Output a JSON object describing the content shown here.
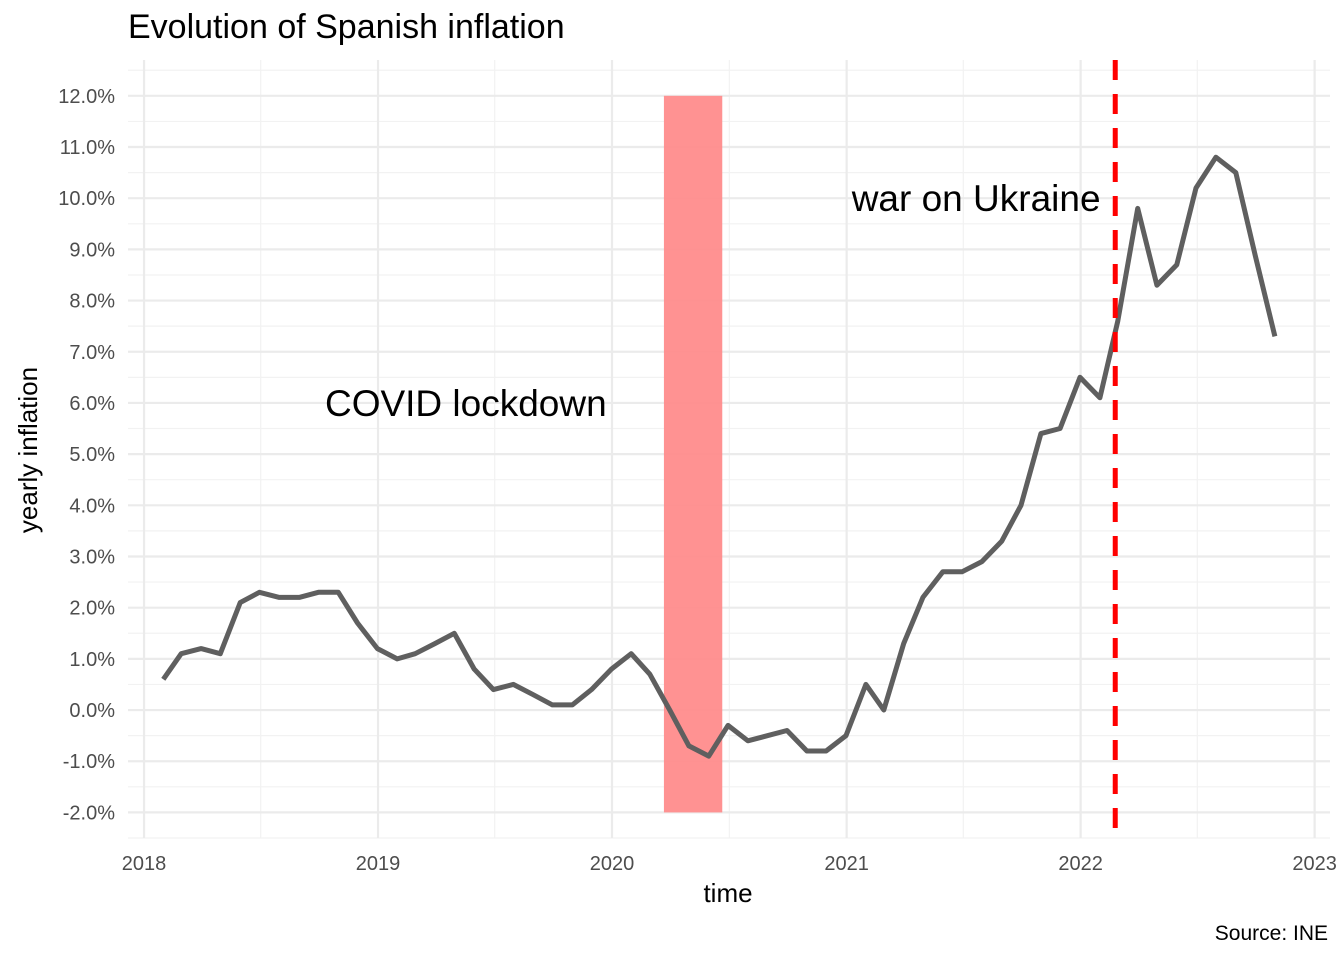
{
  "chart_data": {
    "type": "line",
    "title": "Evolution of Spanish inflation",
    "xlabel": "time",
    "ylabel": "yearly inflation",
    "caption": "Source: INE",
    "xlim": [
      "2017-12-07",
      "2023-01-25"
    ],
    "ylim": [
      -2.5,
      12.7
    ],
    "x_ticks": [
      "2018",
      "2019",
      "2020",
      "2021",
      "2022",
      "2023"
    ],
    "y_ticks": [
      "12.0%",
      "11.0%",
      "10.0%",
      "9.0%",
      "8.0%",
      "7.0%",
      "6.0%",
      "5.0%",
      "4.0%",
      "3.0%",
      "2.0%",
      "1.0%",
      "0.0%",
      "-1.0%",
      "-2.0%"
    ],
    "grid": true,
    "series": [
      {
        "color": "#5f5f5f",
        "x": [
          "2018-01-31",
          "2018-02-28",
          "2018-03-31",
          "2018-04-30",
          "2018-05-31",
          "2018-06-30",
          "2018-07-31",
          "2018-08-31",
          "2018-09-30",
          "2018-10-31",
          "2018-11-30",
          "2018-12-31",
          "2019-01-31",
          "2019-02-28",
          "2019-03-31",
          "2019-04-30",
          "2019-05-31",
          "2019-06-30",
          "2019-07-31",
          "2019-08-31",
          "2019-09-30",
          "2019-10-31",
          "2019-11-30",
          "2019-12-31",
          "2020-01-31",
          "2020-02-29",
          "2020-03-31",
          "2020-04-30",
          "2020-05-31",
          "2020-06-30",
          "2020-07-31",
          "2020-08-31",
          "2020-09-30",
          "2020-10-31",
          "2020-11-30",
          "2020-12-31",
          "2021-01-31",
          "2021-02-28",
          "2021-03-31",
          "2021-04-30",
          "2021-05-31",
          "2021-06-30",
          "2021-07-31",
          "2021-08-31",
          "2021-09-30",
          "2021-10-31",
          "2021-11-30",
          "2021-12-31",
          "2022-01-31",
          "2022-02-28",
          "2022-03-31",
          "2022-04-30",
          "2022-05-31",
          "2022-06-30",
          "2022-07-31",
          "2022-08-31",
          "2022-09-30",
          "2022-10-31"
        ],
        "values": [
          0.6,
          1.1,
          1.2,
          1.1,
          2.1,
          2.3,
          2.2,
          2.2,
          2.3,
          2.3,
          1.7,
          1.2,
          1.0,
          1.1,
          1.3,
          1.5,
          0.8,
          0.4,
          0.5,
          0.3,
          0.1,
          0.1,
          0.4,
          0.8,
          1.1,
          0.7,
          0.0,
          -0.7,
          -0.9,
          -0.3,
          -0.6,
          -0.5,
          -0.4,
          -0.8,
          -0.8,
          -0.5,
          0.5,
          0.0,
          1.3,
          2.2,
          2.7,
          2.7,
          2.9,
          3.3,
          4.0,
          5.4,
          5.5,
          6.5,
          6.1,
          7.6,
          9.8,
          8.3,
          8.7,
          10.2,
          10.8,
          10.5,
          8.9,
          7.3
        ]
      }
    ],
    "shaded_region": {
      "x_start": "2020-03-22",
      "x_end": "2020-06-21",
      "y_start": -2.0,
      "y_end": 12.0,
      "color": "#ff8c8c"
    },
    "vline": {
      "x": "2022-02-24",
      "color": "#ff0000",
      "style": "dashed"
    },
    "annotations": [
      {
        "text": "COVID lockdown",
        "x": "2019-05-18",
        "y": 6.0
      },
      {
        "text": "war on Ukraine",
        "x": "2021-07-22",
        "y": 10.0
      }
    ]
  }
}
